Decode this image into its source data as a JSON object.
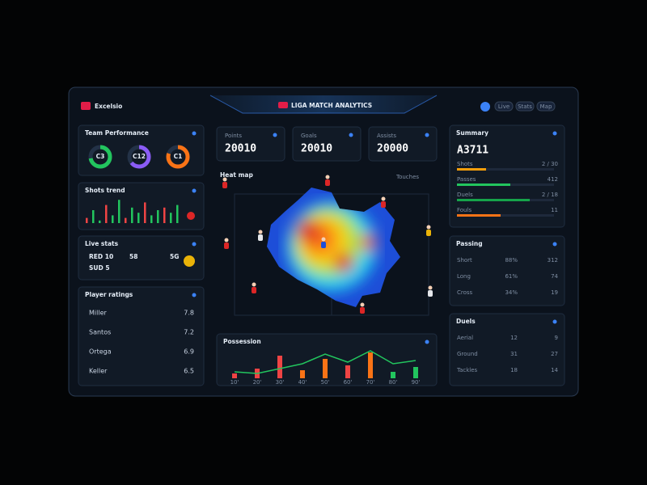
{
  "header": {
    "brand": "Excelsio",
    "title": "LIGA MATCH ANALYTICS",
    "buttons": [
      "Live",
      "Stats",
      "Map"
    ]
  },
  "rings": {
    "title": "Team Performance",
    "items": [
      {
        "label": "C3",
        "value": 72,
        "color": "#22c55e"
      },
      {
        "label": "C12",
        "value": 64,
        "color": "#8b5cf6"
      },
      {
        "label": "C1",
        "value": 80,
        "color": "#f97316"
      }
    ]
  },
  "trend": {
    "title": "Shots trend",
    "values": [
      2,
      5,
      1,
      7,
      3,
      9,
      2,
      6,
      4,
      8,
      3,
      5,
      6,
      4,
      7
    ],
    "ylim": [
      0,
      10
    ]
  },
  "stats": {
    "title": "Live stats",
    "rows": [
      [
        "RED 10",
        "58",
        "5G"
      ],
      [
        "SUD 5",
        "",
        ""
      ]
    ]
  },
  "table": {
    "title": "Player ratings",
    "rows": [
      [
        "Miller",
        "7.8"
      ],
      [
        "Santos",
        "7.2"
      ],
      [
        "Ortega",
        "6.9"
      ],
      [
        "Keller",
        "6.5"
      ]
    ]
  },
  "kpis": [
    {
      "label": "Points",
      "value": "20010"
    },
    {
      "label": "Goals",
      "value": "20010"
    },
    {
      "label": "Assists",
      "value": "20000"
    }
  ],
  "pitch": {
    "title": "Heat map",
    "legend": "Touches"
  },
  "possession": {
    "title": "Possession",
    "categories": [
      "10'",
      "20'",
      "30'",
      "40'",
      "50'",
      "60'",
      "70'",
      "80'",
      "90'"
    ],
    "bars": [
      3,
      6,
      14,
      5,
      12,
      8,
      16,
      4,
      7
    ],
    "colors": [
      "#ef4444",
      "#ef4444",
      "#ef4444",
      "#f97316",
      "#f97316",
      "#ef4444",
      "#f97316",
      "#22c55e",
      "#22c55e"
    ],
    "line": [
      4,
      3,
      6,
      9,
      15,
      10,
      17,
      9,
      11
    ],
    "ylim": [
      0,
      20
    ]
  },
  "summary": {
    "title": "Summary",
    "value": "A3711",
    "rows": [
      {
        "label": "Shots",
        "value": "2 / 30",
        "percent": 30,
        "color": "#f59e0b"
      },
      {
        "label": "Passes",
        "value": "412",
        "percent": 55,
        "color": "#22c55e"
      },
      {
        "label": "Duels",
        "value": "2 / 18",
        "percent": 75,
        "color": "#16a34a"
      },
      {
        "label": "Fouls",
        "value": "11",
        "percent": 45,
        "color": "#f97316"
      }
    ]
  },
  "passing": {
    "title": "Passing",
    "rows": [
      [
        "Short",
        "88%",
        "312"
      ],
      [
        "Long",
        "61%",
        "74"
      ],
      [
        "Cross",
        "34%",
        "19"
      ]
    ]
  },
  "duels": {
    "title": "Duels",
    "rows": [
      [
        "Aerial",
        "12",
        "9"
      ],
      [
        "Ground",
        "31",
        "27"
      ],
      [
        "Tackles",
        "18",
        "14"
      ]
    ]
  }
}
